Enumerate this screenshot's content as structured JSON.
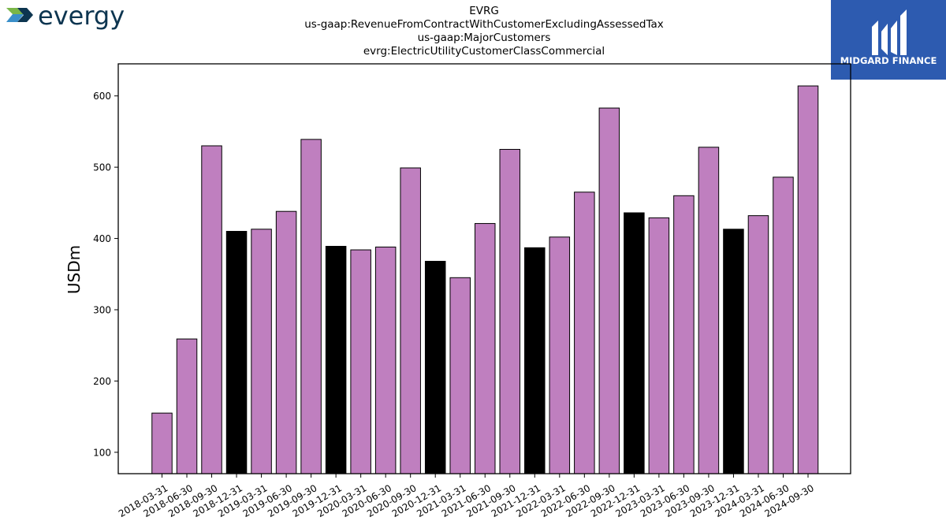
{
  "logos": {
    "left_wordmark": "evergy",
    "right_wordmark": "MIDGARD FINANCE",
    "brand_colors": {
      "evergy_navy": "#0d3550",
      "evergy_green": "#7ab648",
      "evergy_blue": "#3a8fc9",
      "midgard_blue": "#2d5bb0"
    }
  },
  "chart_data": {
    "type": "bar",
    "title_lines": [
      "EVRG",
      "us-gaap:RevenueFromContractWithCustomerExcludingAssessedTax",
      "us-gaap:MajorCustomers",
      "evrg:ElectricUtilityCustomerClassCommercial"
    ],
    "ylabel": "USDm",
    "xlabel": "",
    "ylim": [
      70,
      645
    ],
    "yticks": [
      100,
      200,
      300,
      400,
      500,
      600
    ],
    "grid": false,
    "colors": {
      "quarter": "#bf7fbf",
      "year_end": "#000000"
    },
    "categories": [
      "2018-03-31",
      "2018-06-30",
      "2018-09-30",
      "2018-12-31",
      "2019-03-31",
      "2019-06-30",
      "2019-09-30",
      "2019-12-31",
      "2020-03-31",
      "2020-06-30",
      "2020-09-30",
      "2020-12-31",
      "2021-03-31",
      "2021-06-30",
      "2021-09-30",
      "2021-12-31",
      "2022-03-31",
      "2022-06-30",
      "2022-09-30",
      "2022-12-31",
      "2023-03-31",
      "2023-06-30",
      "2023-09-30",
      "2023-12-31",
      "2024-03-31",
      "2024-06-30",
      "2024-09-30"
    ],
    "values": [
      155,
      259,
      530,
      410,
      413,
      438,
      539,
      389,
      384,
      388,
      499,
      368,
      345,
      421,
      525,
      387,
      402,
      465,
      583,
      436,
      429,
      460,
      528,
      413,
      432,
      486,
      614
    ]
  }
}
